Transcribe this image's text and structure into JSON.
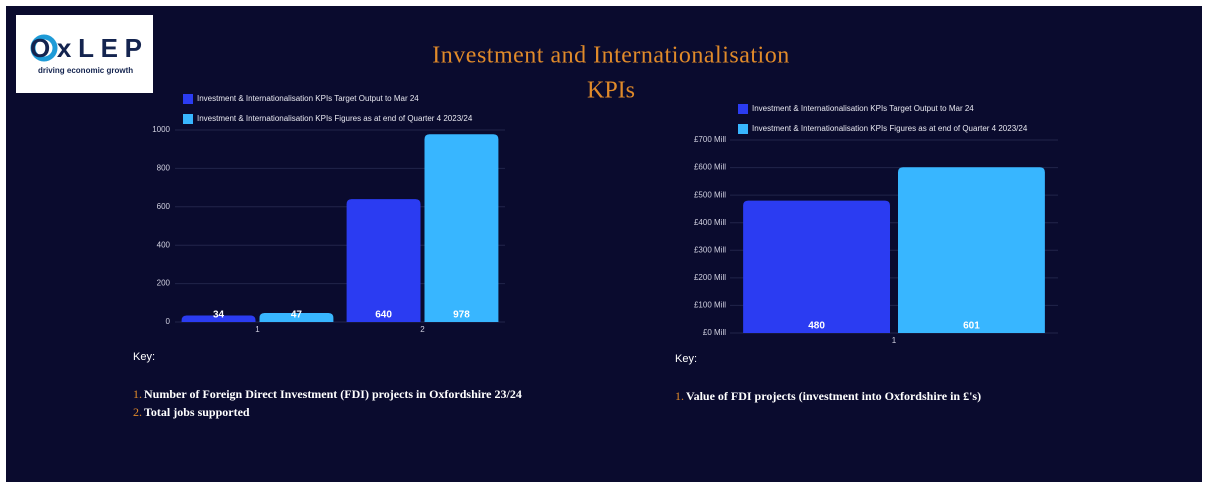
{
  "header": {
    "logo": "OxLEP",
    "tagline": "driving economic growth",
    "title_lines": [
      "Investment and Internationalisation",
      "KPIs"
    ]
  },
  "chart_data": [
    {
      "type": "bar",
      "categories": [
        "1",
        "2"
      ],
      "series": [
        {
          "name": "Investment & Internationalisation KPIs Target Output to Mar 24",
          "color": "#2b3cf2",
          "values": [
            34,
            640
          ]
        },
        {
          "name": "Investment & Internationalisation KPIs Figures as at end of Quarter 4 2023/24",
          "color": "#38b6ff",
          "values": [
            47,
            978
          ]
        }
      ],
      "ylim": [
        0,
        1000
      ],
      "yticks": [
        0,
        200,
        400,
        600,
        800,
        1000
      ],
      "grid": true,
      "legend": "top"
    },
    {
      "type": "bar",
      "categories": [
        "1"
      ],
      "series": [
        {
          "name": "Investment & Internationalisation KPIs Target Output to Mar 24",
          "color": "#2b3cf2",
          "values": [
            480
          ]
        },
        {
          "name": "Investment & Internationalisation KPIs Figures as at end of Quarter 4 2023/24",
          "color": "#38b6ff",
          "values": [
            601
          ]
        }
      ],
      "ylim": [
        0,
        700
      ],
      "yticks": [
        {
          "value": 0,
          "label": "£0 Mill"
        },
        {
          "value": 100,
          "label": "£100 Mill"
        },
        {
          "value": 200,
          "label": "£200 Mill"
        },
        {
          "value": 300,
          "label": "£300 Mill"
        },
        {
          "value": 400,
          "label": "£400 Mill"
        },
        {
          "value": 500,
          "label": "£500 Mill"
        },
        {
          "value": 600,
          "label": "£600 Mill"
        },
        {
          "value": 700,
          "label": "£700 Mill"
        }
      ],
      "grid": true,
      "legend": "top"
    }
  ],
  "keys": [
    {
      "heading": "Key:",
      "items": [
        {
          "number": "1.",
          "text": "Number of Foreign Direct Investment (FDI) projects in Oxfordshire 23/24"
        },
        {
          "number": "2.",
          "text": "Total jobs supported"
        }
      ]
    },
    {
      "heading": "Key:",
      "items": [
        {
          "number": "1.",
          "text": "Value of FDI projects (investment into Oxfordshire in £'s)"
        }
      ]
    }
  ]
}
